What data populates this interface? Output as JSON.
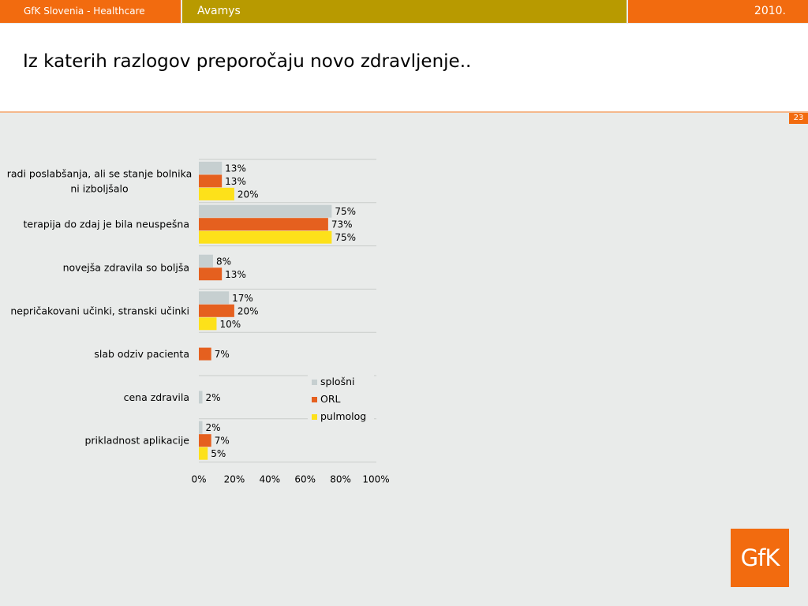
{
  "header": {
    "company": "GfK Slovenia - Healthcare",
    "product": "Avamys",
    "year": "2010."
  },
  "page_title": "Iz katerih razlogov preporočaju novo zdravljenje..",
  "page_number": "23",
  "logo_text": "GfK",
  "colors": {
    "header_orange": "#f26b0f",
    "header_olive": "#b89a00",
    "series_splosni": "#c6cfd0",
    "series_orl": "#e5601f",
    "series_pulmolog": "#fde11a"
  },
  "chart_data": {
    "type": "bar",
    "orientation": "horizontal",
    "title": "",
    "xlabel": "",
    "ylabel": "",
    "xlim": [
      0,
      100
    ],
    "x_ticks": [
      "0%",
      "20%",
      "40%",
      "60%",
      "80%",
      "100%"
    ],
    "legend_position": "bottom-right",
    "grid": false,
    "categories": [
      [
        "radi poslabšanja, ali se stanje bolnika",
        "ni izboljšalo"
      ],
      [
        "terapija do zdaj je bila neuspešna"
      ],
      [
        "novejša zdravila so boljša"
      ],
      [
        "nepričakovani učinki, stranski učinki"
      ],
      [
        "slab odziv pacienta"
      ],
      [
        "cena zdravila"
      ],
      [
        "prikladnost aplikacije"
      ]
    ],
    "series": [
      {
        "name": "splošni",
        "color": "#c6cfd0",
        "values": [
          13,
          75,
          8,
          17,
          null,
          2,
          2
        ]
      },
      {
        "name": "ORL",
        "color": "#e5601f",
        "values": [
          13,
          73,
          13,
          20,
          7,
          null,
          7
        ]
      },
      {
        "name": "pulmolog",
        "color": "#fde11a",
        "values": [
          20,
          75,
          null,
          10,
          null,
          null,
          5
        ]
      }
    ]
  }
}
